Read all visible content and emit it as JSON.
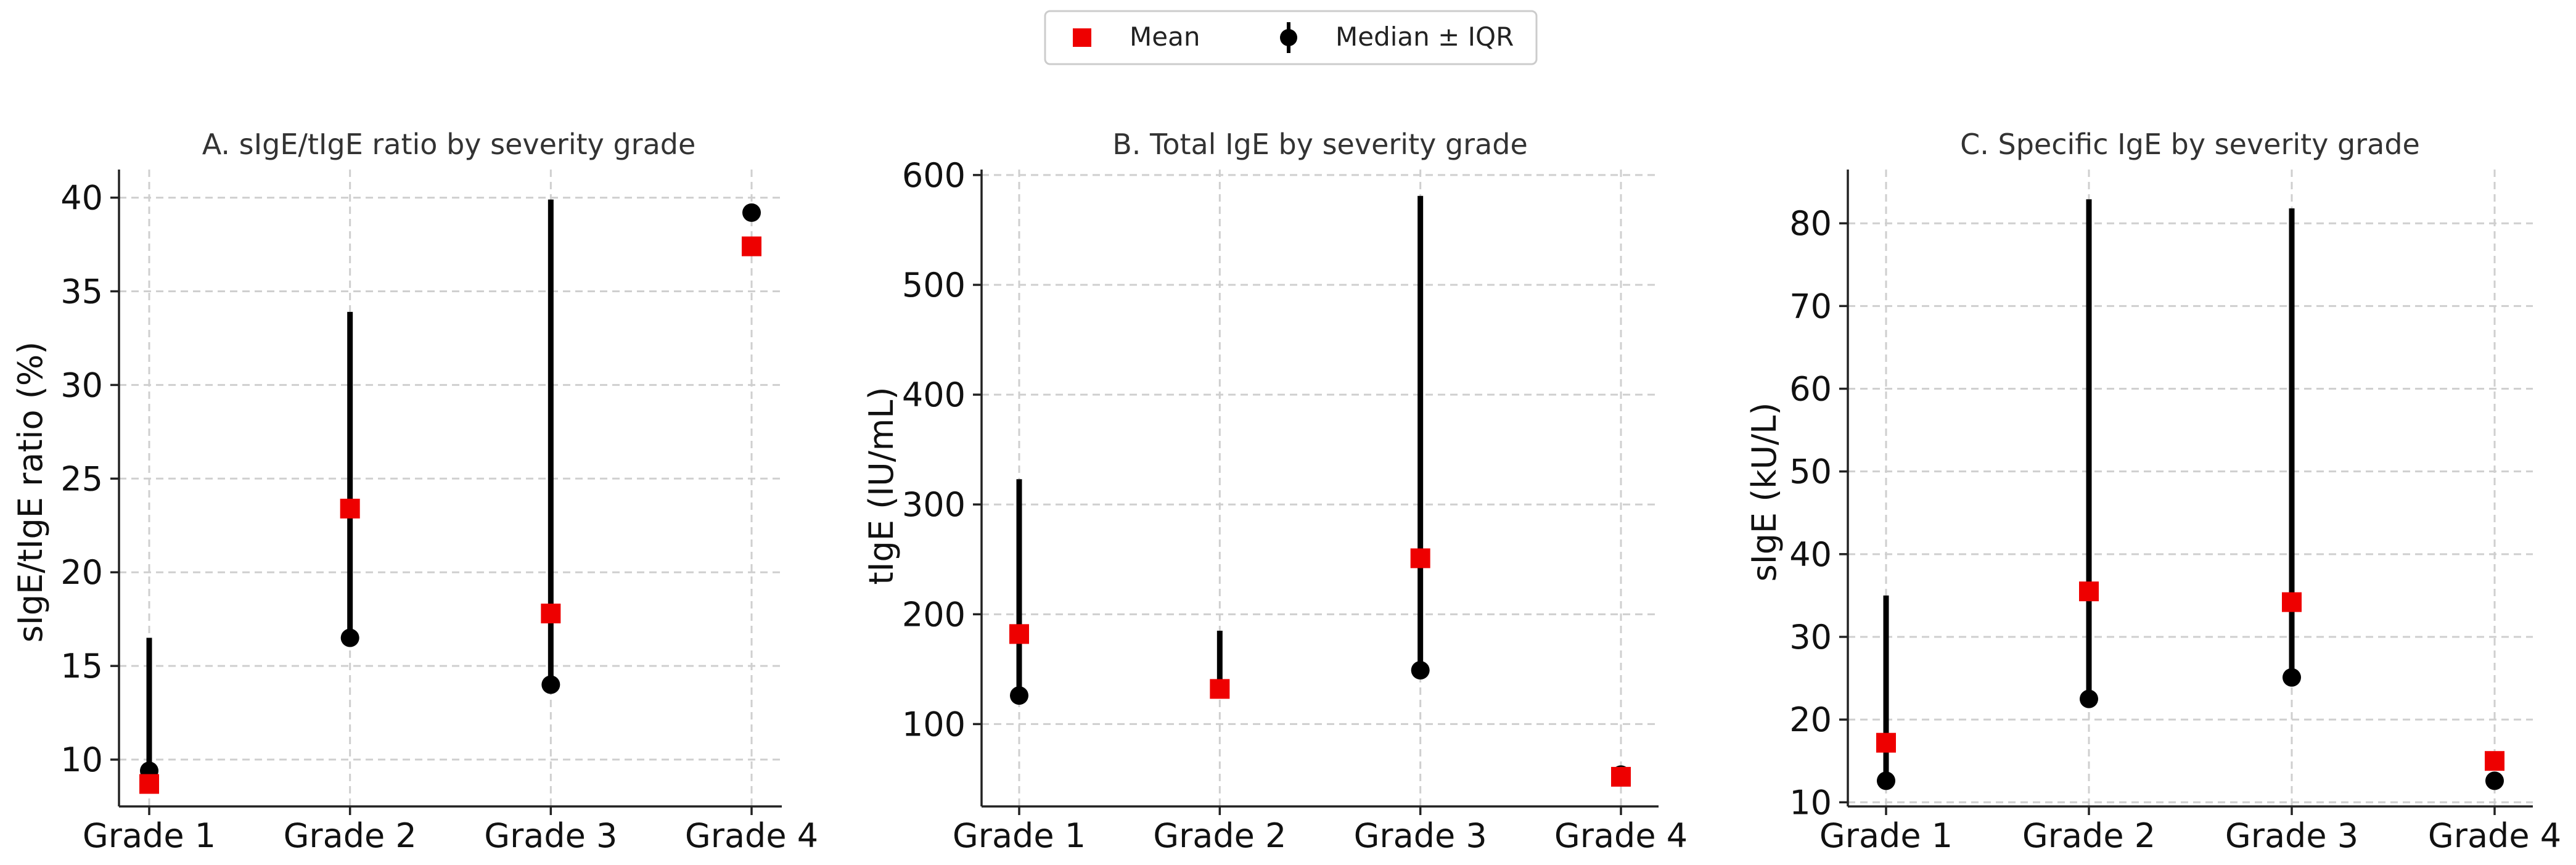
{
  "legend": {
    "mean_label": "Mean",
    "median_label": "Median ± IQR",
    "mean_color": "#ee0000",
    "median_color": "#000000"
  },
  "chart_data": [
    {
      "type": "scatter",
      "title": "A. sIgE/tIgE ratio by severity grade",
      "xlabel": "",
      "ylabel": "sIgE/tIgE ratio (%)",
      "categories": [
        "Grade 1",
        "Grade 2",
        "Grade 3",
        "Grade 4"
      ],
      "ylim": [
        7.5,
        41.5
      ],
      "yticks": [
        10,
        15,
        20,
        25,
        30,
        35,
        40
      ],
      "grid": true,
      "series": [
        {
          "name": "Mean",
          "marker": "square",
          "values": [
            8.7,
            23.4,
            17.8,
            37.4
          ]
        },
        {
          "name": "Median ± IQR",
          "marker": "circle",
          "values": [
            9.4,
            16.5,
            14.0,
            39.2
          ],
          "iqr_low": [
            9.4,
            16.5,
            14.0,
            39.2
          ],
          "iqr_high": [
            16.5,
            33.9,
            39.9,
            39.2
          ]
        }
      ]
    },
    {
      "type": "scatter",
      "title": "B. Total IgE by severity grade",
      "xlabel": "",
      "ylabel": "tIgE (IU/mL)",
      "categories": [
        "Grade 1",
        "Grade 2",
        "Grade 3",
        "Grade 4"
      ],
      "ylim": [
        25,
        605
      ],
      "yticks": [
        100,
        200,
        300,
        400,
        500,
        600
      ],
      "grid": true,
      "series": [
        {
          "name": "Mean",
          "marker": "square",
          "values": [
            182,
            132,
            251,
            52
          ]
        },
        {
          "name": "Median ± IQR",
          "marker": "circle",
          "values": [
            126,
            132,
            149,
            54
          ],
          "iqr_low": [
            126,
            132,
            149,
            54
          ],
          "iqr_high": [
            323,
            185,
            581,
            54
          ]
        }
      ]
    },
    {
      "type": "scatter",
      "title": "C. Specific IgE by severity grade",
      "xlabel": "",
      "ylabel": "sIgE (kU/L)",
      "categories": [
        "Grade 1",
        "Grade 2",
        "Grade 3",
        "Grade 4"
      ],
      "ylim": [
        9.5,
        86.5
      ],
      "yticks": [
        10,
        20,
        30,
        40,
        50,
        60,
        70,
        80
      ],
      "grid": true,
      "series": [
        {
          "name": "Mean",
          "marker": "square",
          "values": [
            17.2,
            35.5,
            34.2,
            15.0
          ]
        },
        {
          "name": "Median ± IQR",
          "marker": "circle",
          "values": [
            12.6,
            22.5,
            25.1,
            12.6
          ],
          "iqr_low": [
            12.6,
            22.5,
            25.1,
            12.6
          ],
          "iqr_high": [
            35.0,
            82.9,
            81.8,
            12.6
          ]
        }
      ]
    }
  ]
}
